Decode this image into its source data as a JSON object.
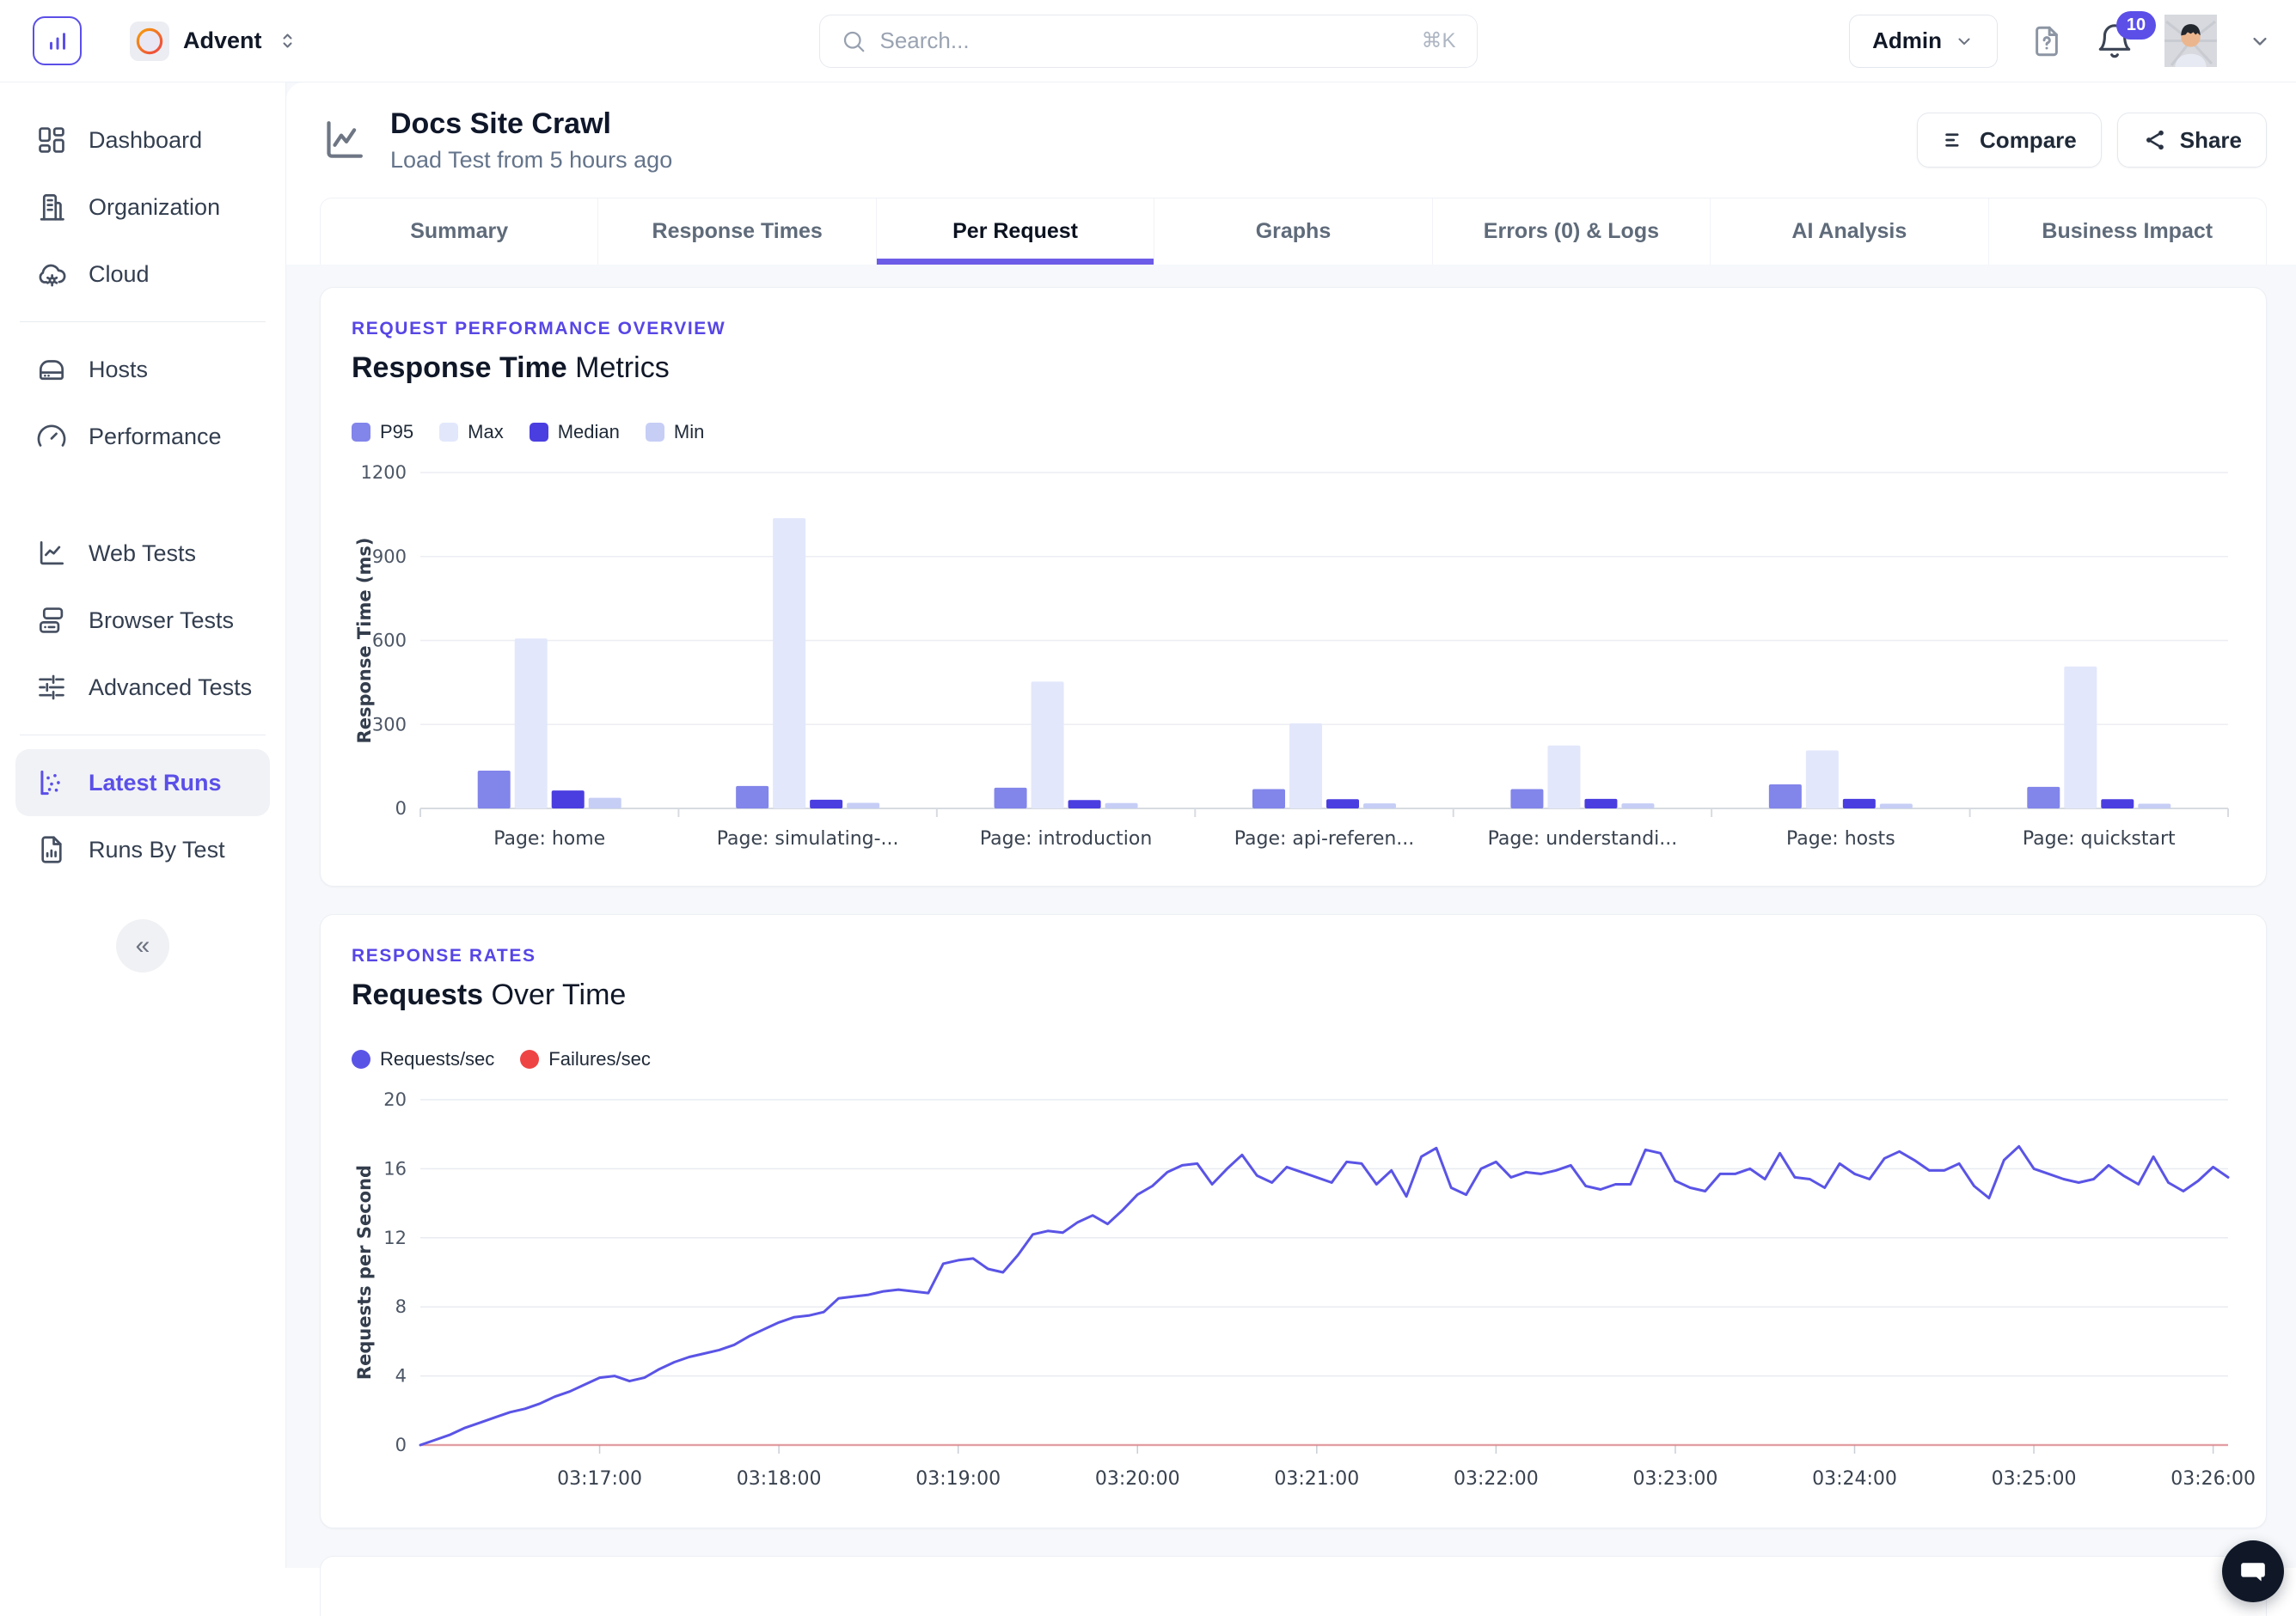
{
  "topbar": {
    "org": {
      "name": "Advent"
    },
    "search": {
      "placeholder": "Search...",
      "shortcut": "⌘K"
    },
    "admin_label": "Admin",
    "notifications_count": "10"
  },
  "sidebar": {
    "sections": [
      {
        "items": [
          {
            "label": "Dashboard",
            "icon": "dashboard"
          },
          {
            "label": "Organization",
            "icon": "organization"
          },
          {
            "label": "Cloud",
            "icon": "cloud-settings"
          }
        ],
        "divider_after": true
      },
      {
        "items": [
          {
            "label": "Hosts",
            "icon": "hosts"
          },
          {
            "label": "Performance",
            "icon": "performance"
          }
        ],
        "divider_after": false
      },
      {
        "items": [
          {
            "label": "Web Tests",
            "icon": "web-tests"
          },
          {
            "label": "Browser Tests",
            "icon": "browser-tests"
          },
          {
            "label": "Advanced Tests",
            "icon": "advanced-tests"
          }
        ],
        "divider_after": true
      },
      {
        "items": [
          {
            "label": "Latest Runs",
            "icon": "latest-runs",
            "active": true
          },
          {
            "label": "Runs By Test",
            "icon": "runs-by-test"
          }
        ],
        "divider_after": false
      }
    ]
  },
  "page": {
    "title": "Docs Site Crawl",
    "subtitle": "Load Test from 5 hours ago",
    "actions": [
      {
        "label": "Compare",
        "icon": "compare"
      },
      {
        "label": "Share",
        "icon": "share"
      }
    ],
    "tabs": [
      {
        "label": "Summary"
      },
      {
        "label": "Response Times"
      },
      {
        "label": "Per Request",
        "active": true
      },
      {
        "label": "Graphs"
      },
      {
        "label": "Errors (0) & Logs"
      },
      {
        "label": "AI Analysis"
      },
      {
        "label": "Business Impact"
      }
    ]
  },
  "cards": [
    {
      "kicker": "REQUEST PERFORMANCE OVERVIEW",
      "title_strong": "Response Time",
      "title_rest": " Metrics"
    },
    {
      "kicker": "RESPONSE RATES",
      "title_strong": "Requests",
      "title_rest": " Over Time"
    }
  ],
  "chart_data": [
    {
      "type": "bar",
      "title": "Response Time Metrics",
      "ylabel": "Response Time (ms)",
      "ylim": [
        0,
        1200
      ],
      "yticks": [
        0,
        300,
        600,
        900,
        1200
      ],
      "grid": true,
      "legend_position": "top-left",
      "categories": [
        "Page: home",
        "Page: simulating-...",
        "Page: introduction",
        "Page: api-referen...",
        "Page: understandi...",
        "Page: hosts",
        "Page: quickstart"
      ],
      "series": [
        {
          "name": "P95",
          "color": "#8285EA",
          "values": [
            135,
            80,
            74,
            69,
            69,
            86,
            77
          ]
        },
        {
          "name": "Max",
          "color": "#E2E7FB",
          "values": [
            607,
            1037,
            453,
            304,
            225,
            207,
            507
          ]
        },
        {
          "name": "Median",
          "color": "#4B3EE0",
          "values": [
            64,
            31,
            30,
            33,
            34,
            34,
            33
          ]
        },
        {
          "name": "Min",
          "color": "#C6CEF6",
          "values": [
            38,
            20,
            19,
            18,
            18,
            17,
            17
          ]
        }
      ]
    },
    {
      "type": "line",
      "title": "Requests Over Time",
      "ylabel": "Requests per Second",
      "ylim": [
        0,
        20
      ],
      "yticks": [
        0,
        4,
        8,
        12,
        16,
        20
      ],
      "grid": true,
      "legend_position": "top-left",
      "x_start": "03:16:00",
      "x_interval_seconds": 5,
      "x_total_seconds": 605,
      "x_tick_labels": [
        "03:17:00",
        "03:18:00",
        "03:19:00",
        "03:20:00",
        "03:21:00",
        "03:22:00",
        "03:23:00",
        "03:24:00",
        "03:25:00",
        "03:26:00"
      ],
      "series": [
        {
          "name": "Requests/sec",
          "color": "#5A54E6",
          "values": [
            0,
            0.3,
            0.6,
            1.0,
            1.3,
            1.6,
            1.9,
            2.1,
            2.4,
            2.8,
            3.1,
            3.5,
            3.9,
            4.0,
            3.7,
            3.9,
            4.4,
            4.8,
            5.1,
            5.3,
            5.5,
            5.8,
            6.3,
            6.7,
            7.1,
            7.4,
            7.5,
            7.7,
            8.5,
            8.6,
            8.7,
            8.9,
            9.0,
            8.9,
            8.8,
            10.5,
            10.7,
            10.8,
            10.2,
            10.0,
            11.0,
            12.2,
            12.4,
            12.3,
            12.9,
            13.3,
            12.8,
            13.6,
            14.5,
            15.0,
            15.8,
            16.2,
            16.3,
            15.1,
            16.0,
            16.8,
            15.6,
            15.2,
            16.1,
            15.8,
            15.5,
            15.2,
            16.4,
            16.3,
            15.1,
            15.9,
            14.4,
            16.7,
            17.2,
            14.9,
            14.5,
            16.0,
            16.4,
            15.5,
            15.8,
            15.7,
            15.9,
            16.2,
            15.0,
            14.8,
            15.1,
            15.1,
            17.1,
            16.9,
            15.3,
            14.9,
            14.7,
            15.7,
            15.7,
            16.0,
            15.4,
            16.9,
            15.5,
            15.4,
            14.9,
            16.3,
            15.7,
            15.4,
            16.6,
            17.0,
            16.5,
            15.9,
            15.9,
            16.3,
            15.0,
            14.3,
            16.5,
            17.3,
            16.0,
            15.7,
            15.4,
            15.2,
            15.4,
            16.2,
            15.6,
            15.1,
            16.7,
            15.2,
            14.7,
            15.3,
            16.1,
            15.5
          ]
        },
        {
          "name": "Failures/sec",
          "color": "#EF4444",
          "constant": 0
        }
      ]
    }
  ]
}
